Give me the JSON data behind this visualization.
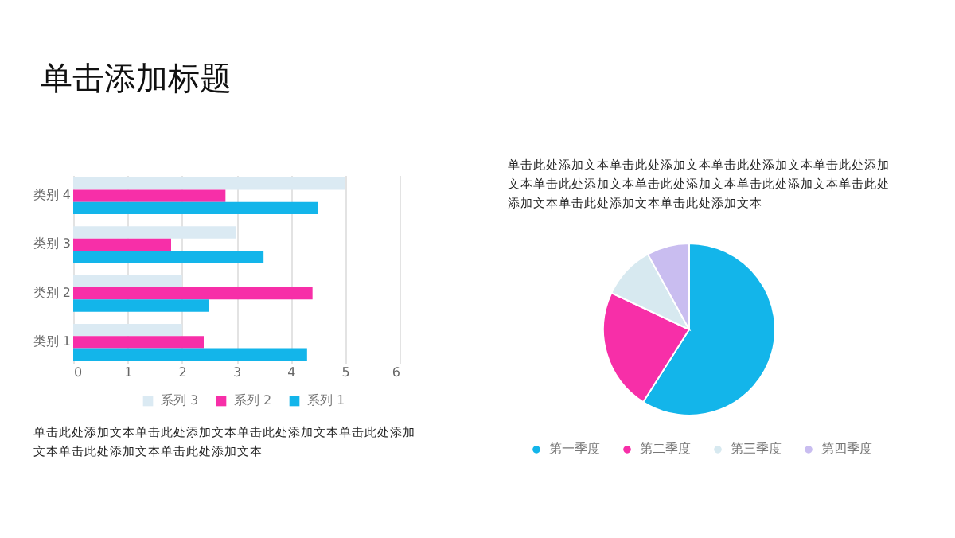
{
  "chart_data": [
    {
      "type": "bar",
      "title": "单击添加标题",
      "orientation": "horizontal",
      "categories": [
        "类别 4",
        "类别 3",
        "类别 2",
        "类别 1"
      ],
      "series": [
        {
          "name": "系列 3",
          "color": "#dbeaf3",
          "values": [
            5,
            3,
            2,
            2
          ]
        },
        {
          "name": "系列 2",
          "color": "#f72fa8",
          "values": [
            2.8,
            1.8,
            4.4,
            2.4
          ]
        },
        {
          "name": "系列 1",
          "color": "#13b5ea",
          "values": [
            4.5,
            3.5,
            2.5,
            4.3
          ]
        }
      ],
      "xlim": [
        0,
        6
      ],
      "xticks": [
        0,
        1,
        2,
        3,
        4,
        5,
        6
      ],
      "grid": "x",
      "legend": "bottom",
      "annotations": [
        "单击此处添加文本单击此处添加文本单击此处添加文本单击此处添加文本单击此处添加文本单击此处添加文本"
      ]
    },
    {
      "type": "pie",
      "subtitle": "单击此处添加文本单击此处添加文本单击此处添加文本单击此处添加文本单击此处添加文本单击此处添加文本单击此处添加文本单击此处添加文本单击此处添加文本单击此处添加文本",
      "categories": [
        "第一季度",
        "第二季度",
        "第三季度",
        "第四季度"
      ],
      "values": [
        59,
        23,
        10,
        8
      ],
      "colors": [
        "#13b5ea",
        "#f72fa8",
        "#d7e9f0",
        "#c9bdf0"
      ],
      "legend": "bottom"
    }
  ]
}
